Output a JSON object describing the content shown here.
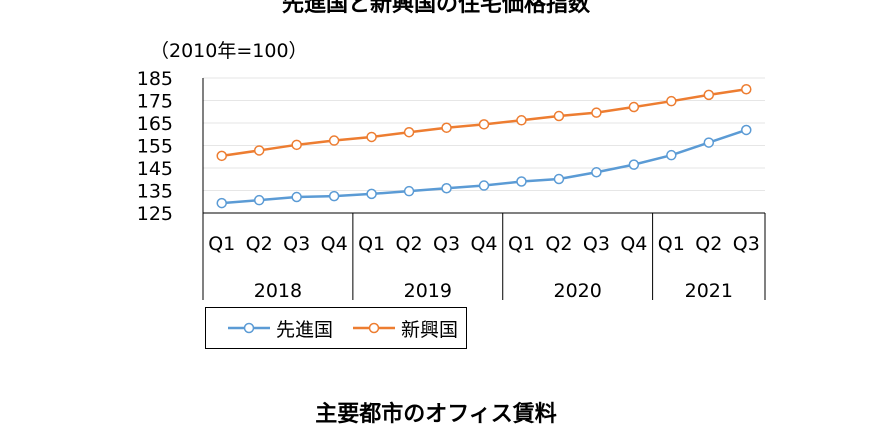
{
  "chart_data": {
    "type": "line",
    "title": "先進国と新興国の住宅価格指数",
    "unit_label": "（2010年=100）",
    "quarters": [
      "Q1",
      "Q2",
      "Q3",
      "Q4",
      "Q1",
      "Q2",
      "Q3",
      "Q4",
      "Q1",
      "Q2",
      "Q3",
      "Q4",
      "Q1",
      "Q2",
      "Q3"
    ],
    "years": [
      "2018",
      "2019",
      "2020",
      "2021"
    ],
    "year_quarter_counts": [
      4,
      4,
      4,
      3
    ],
    "yticks": [
      125,
      135,
      145,
      155,
      165,
      175,
      185
    ],
    "ylim": [
      125,
      185
    ],
    "grid": true,
    "legend_position": "bottom-left",
    "series": [
      {
        "name": "先進国",
        "color": "#5b9bd5",
        "values": [
          129.4,
          130.7,
          132.1,
          132.5,
          133.5,
          134.7,
          136.0,
          137.2,
          139.0,
          140.1,
          143.1,
          146.5,
          150.7,
          156.3,
          161.9
        ]
      },
      {
        "name": "新興国",
        "color": "#ed7d31",
        "values": [
          150.4,
          152.8,
          155.3,
          157.2,
          158.8,
          160.9,
          162.9,
          164.4,
          166.2,
          168.1,
          169.6,
          172.1,
          174.7,
          177.5,
          180.0
        ]
      }
    ]
  },
  "next_chart_title": "主要都市のオフィス賃料"
}
